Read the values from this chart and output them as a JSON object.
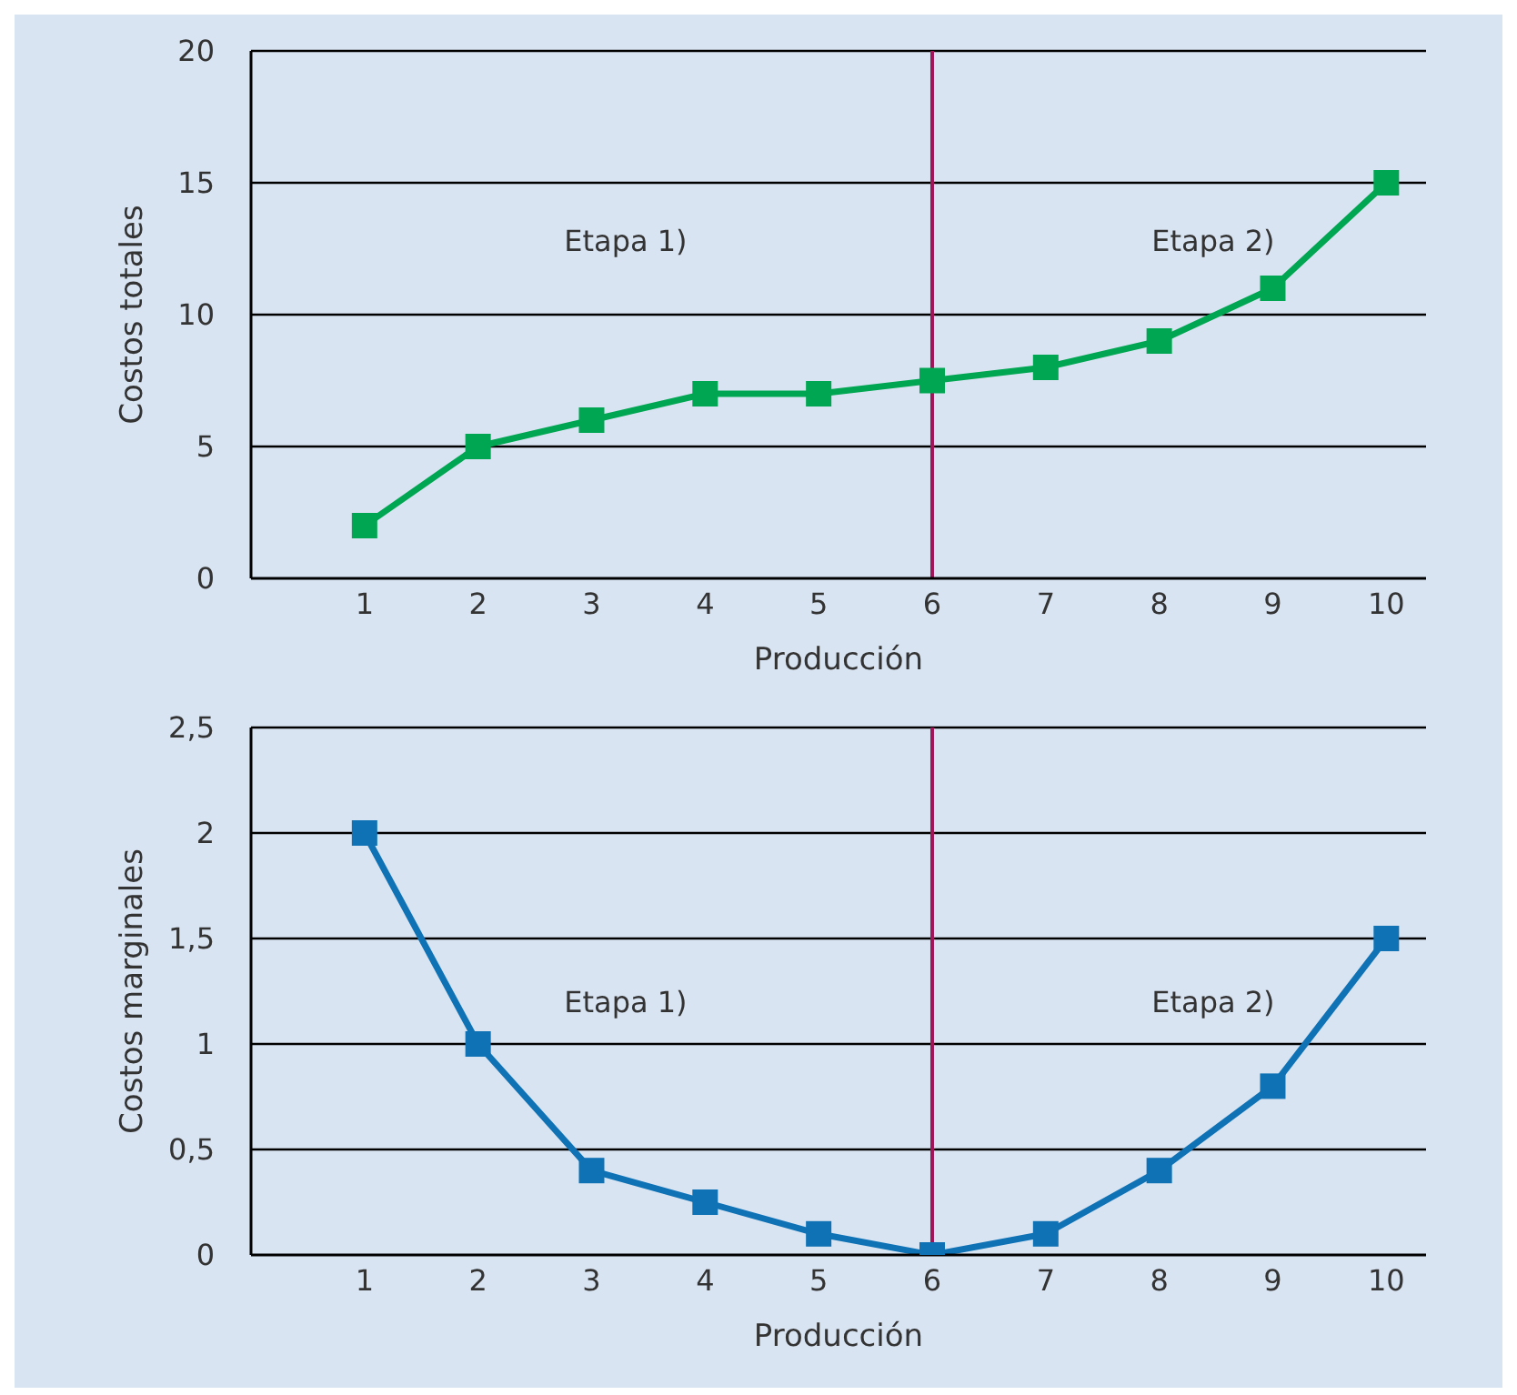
{
  "chart_data": [
    {
      "type": "line",
      "xlabel": "Producción",
      "ylabel": "Costos totales",
      "x": [
        1,
        2,
        3,
        4,
        5,
        6,
        7,
        8,
        9,
        10
      ],
      "series": [
        {
          "color": "#00a651",
          "values": [
            2,
            5,
            6,
            7,
            7,
            7.5,
            8,
            9,
            11,
            15
          ]
        }
      ],
      "xlim": [
        0,
        10.35
      ],
      "xticks": [
        1,
        2,
        3,
        4,
        5,
        6,
        7,
        8,
        9,
        10
      ],
      "ylim": [
        0,
        20
      ],
      "yticks": [
        0,
        5,
        10,
        15,
        20
      ],
      "grid": "y",
      "marker": "square",
      "legend": false,
      "ref_lines": [
        {
          "axis": "x",
          "value": 6,
          "color": "#a0155a"
        }
      ],
      "annotations": [
        "Etapa 1)",
        "Etapa 2)"
      ]
    },
    {
      "type": "line",
      "xlabel": "Producción",
      "ylabel": "Costos marginales",
      "x": [
        1,
        2,
        3,
        4,
        5,
        6,
        7,
        8,
        9,
        10
      ],
      "series": [
        {
          "color": "#0f72b5",
          "values": [
            2,
            1,
            0.4,
            0.25,
            0.1,
            0,
            0.1,
            0.4,
            0.8,
            1.5
          ]
        }
      ],
      "xlim": [
        0,
        10.35
      ],
      "xticks": [
        1,
        2,
        3,
        4,
        5,
        6,
        7,
        8,
        9,
        10
      ],
      "ylim": [
        0,
        2.5
      ],
      "yticks": [
        0,
        {
          "value": 0.5,
          "label": "0,5"
        },
        1,
        {
          "value": 1.5,
          "label": "1,5"
        },
        2,
        {
          "value": 2.5,
          "label": "2,5"
        }
      ],
      "grid": "y",
      "marker": "square",
      "legend": false,
      "ref_lines": [
        {
          "axis": "x",
          "value": 6,
          "color": "#a0155a"
        }
      ],
      "annotations": [
        "Etapa 1)",
        "Etapa 2)"
      ]
    }
  ]
}
